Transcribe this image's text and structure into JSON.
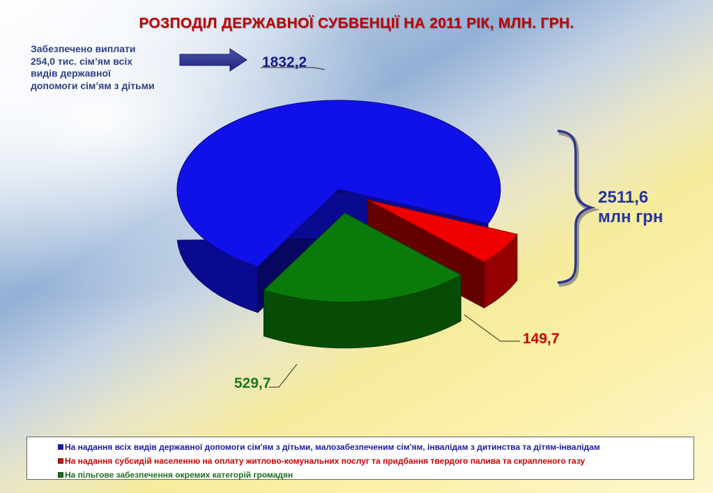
{
  "title": "РОЗПОДІЛ  ДЕРЖАВНОЇ  СУБВЕНЦІЇ  НА  2011 РІК,  МЛН. ГРН.",
  "note": {
    "lines": [
      "Забезпечено виплати",
      "254,0 тис. сім’ям всіх",
      "видів державної",
      "допомоги сім’ям з дітьми"
    ]
  },
  "total": {
    "value": "2511,6",
    "unit": "млн грн"
  },
  "chart_data": {
    "type": "pie",
    "slices": [
      {
        "label": "1832,2",
        "value": 1832.2,
        "color": "#1010e8",
        "legend": "На надання всіх видів державної допомоги сім'ям з дітьми,  малозабезпеченим  сім'ям,  інвалідам з дитинства  та дітям-інвалідам",
        "legend_color": "#1a1aa0"
      },
      {
        "label": "149,7",
        "value": 149.7,
        "color": "#ee0000",
        "legend": "На надання субсидій населенню на оплату житлово-комунальних  послуг та придбання твердого палива та скрапленого газу",
        "legend_color": "#cc0000"
      },
      {
        "label": "529,7",
        "value": 529.7,
        "color": "#0a7a0a",
        "legend": "На пільгове забезпечення окремих категорій громадян",
        "legend_color": "#1f6f1f"
      }
    ]
  }
}
